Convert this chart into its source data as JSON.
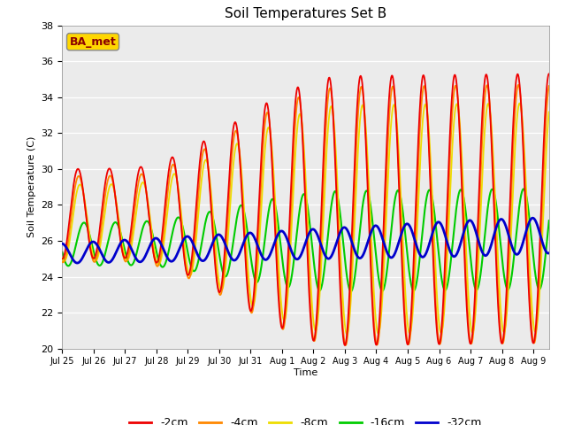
{
  "title": "Soil Temperatures Set B",
  "xlabel": "Time",
  "ylabel": "Soil Temperature (C)",
  "ylim": [
    20,
    38
  ],
  "yticks": [
    20,
    22,
    24,
    26,
    28,
    30,
    32,
    34,
    36,
    38
  ],
  "xtick_labels": [
    "Jul 25",
    "Jul 26",
    "Jul 27",
    "Jul 28",
    "Jul 29",
    "Jul 30",
    "Jul 31",
    "Aug 1",
    "Aug 2",
    "Aug 3",
    "Aug 4",
    "Aug 5",
    "Aug 6",
    "Aug 7",
    "Aug 8",
    "Aug 9"
  ],
  "annotation_text": "BA_met",
  "annotation_color": "#8B0000",
  "annotation_bg": "#FFD700",
  "colors": {
    "-2cm": "#EE0000",
    "-4cm": "#FF8800",
    "-8cm": "#EEDD00",
    "-16cm": "#00CC00",
    "-32cm": "#0000CC"
  },
  "line_widths": {
    "-2cm": 1.3,
    "-4cm": 1.3,
    "-8cm": 1.3,
    "-16cm": 1.5,
    "-32cm": 2.0
  },
  "background_color": "#EBEBEB",
  "n_days": 15.5,
  "samples_per_day": 288
}
